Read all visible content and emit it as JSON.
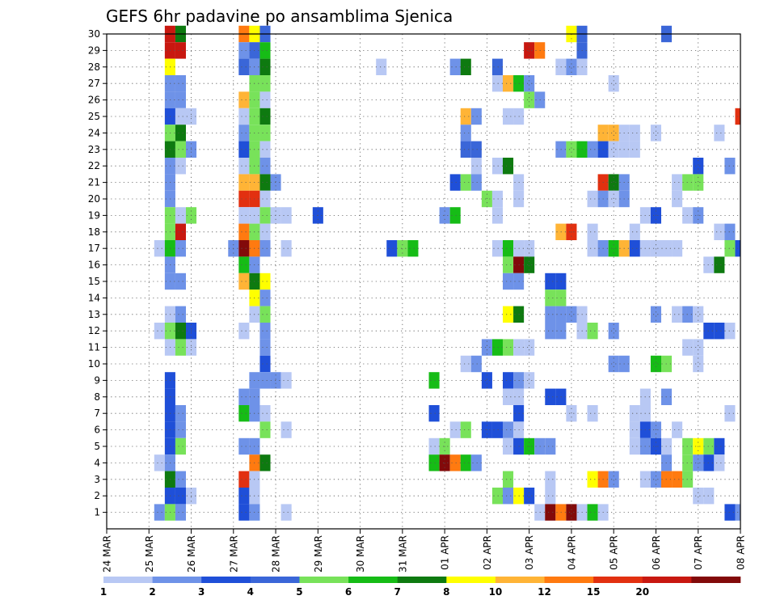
{
  "chart_data": {
    "type": "heatmap",
    "title": "GEFS 6hr padavine po ansamblima Sjenica",
    "xlabel": "",
    "ylabel": "",
    "x_ticks": [
      "24 MAR",
      "25 MAR",
      "26 MAR",
      "27 MAR",
      "28 MAR",
      "29 MAR",
      "30 MAR",
      "31 MAR",
      "01 APR",
      "02 APR",
      "03 APR",
      "04 APR",
      "05 APR",
      "06 APR",
      "07 APR",
      "08 APR"
    ],
    "y_ticks": [
      "1",
      "2",
      "3",
      "4",
      "5",
      "6",
      "7",
      "8",
      "9",
      "10",
      "11",
      "12",
      "13",
      "14",
      "15",
      "16",
      "17",
      "18",
      "19",
      "20",
      "21",
      "22",
      "23",
      "24",
      "25",
      "26",
      "27",
      "28",
      "29",
      "30"
    ],
    "x_unit": "6-hour step from 24 MAR 00 UTC",
    "xlim": [
      0,
      60
    ],
    "ylim": [
      0,
      30
    ],
    "grid": true,
    "colorbar": {
      "bounds": [
        1,
        2,
        3,
        4,
        5,
        6,
        7,
        8,
        10,
        12,
        15,
        20
      ],
      "colors": [
        "#b8c8f4",
        "#6e92e8",
        "#1f4fd8",
        "#3a66d8",
        "#78e25a",
        "#16bc16",
        "#0e7a10",
        "#ffff00",
        "#ffb436",
        "#ff7a10",
        "#e23010",
        "#c81810",
        "#820a0a"
      ],
      "labels": [
        "1",
        "2",
        "3",
        "4",
        "5",
        "6",
        "7",
        "8",
        "10",
        "12",
        "15",
        "20"
      ]
    },
    "cells_format": "[time_step, ensemble_member, color_class]",
    "cells": [
      [
        6,
        30,
        12
      ],
      [
        7,
        30,
        7
      ],
      [
        13,
        30,
        10
      ],
      [
        14,
        30,
        8
      ],
      [
        15,
        30,
        4
      ],
      [
        44,
        30,
        8
      ],
      [
        45,
        30,
        4
      ],
      [
        53,
        30,
        4
      ],
      [
        6,
        29,
        12
      ],
      [
        7,
        29,
        12
      ],
      [
        13,
        29,
        2
      ],
      [
        14,
        29,
        4
      ],
      [
        15,
        29,
        6
      ],
      [
        40,
        29,
        12
      ],
      [
        41,
        29,
        10
      ],
      [
        45,
        29,
        4
      ],
      [
        6,
        28,
        8
      ],
      [
        13,
        28,
        4
      ],
      [
        14,
        28,
        2
      ],
      [
        15,
        28,
        7
      ],
      [
        26,
        28,
        1
      ],
      [
        33,
        28,
        2
      ],
      [
        34,
        28,
        7
      ],
      [
        37,
        28,
        4
      ],
      [
        43,
        28,
        1
      ],
      [
        44,
        28,
        2
      ],
      [
        45,
        28,
        1
      ],
      [
        6,
        27,
        2
      ],
      [
        7,
        27,
        2
      ],
      [
        14,
        27,
        5
      ],
      [
        15,
        27,
        5
      ],
      [
        37,
        27,
        1
      ],
      [
        38,
        27,
        9
      ],
      [
        39,
        27,
        6
      ],
      [
        40,
        27,
        2
      ],
      [
        48,
        27,
        1
      ],
      [
        6,
        26,
        2
      ],
      [
        7,
        26,
        2
      ],
      [
        13,
        26,
        9
      ],
      [
        14,
        26,
        5
      ],
      [
        15,
        26,
        1
      ],
      [
        40,
        26,
        5
      ],
      [
        41,
        26,
        2
      ],
      [
        6,
        25,
        3
      ],
      [
        7,
        25,
        1
      ],
      [
        8,
        25,
        1
      ],
      [
        13,
        25,
        1
      ],
      [
        14,
        25,
        5
      ],
      [
        15,
        25,
        7
      ],
      [
        34,
        25,
        9
      ],
      [
        35,
        25,
        2
      ],
      [
        38,
        25,
        1
      ],
      [
        39,
        25,
        1
      ],
      [
        60,
        25,
        11
      ],
      [
        6,
        24,
        5
      ],
      [
        7,
        24,
        7
      ],
      [
        13,
        24,
        2
      ],
      [
        14,
        24,
        5
      ],
      [
        15,
        24,
        5
      ],
      [
        34,
        24,
        2
      ],
      [
        47,
        24,
        9
      ],
      [
        48,
        24,
        9
      ],
      [
        49,
        24,
        1
      ],
      [
        50,
        24,
        1
      ],
      [
        52,
        24,
        1
      ],
      [
        58,
        24,
        1
      ],
      [
        6,
        23,
        7
      ],
      [
        7,
        23,
        5
      ],
      [
        8,
        23,
        2
      ],
      [
        13,
        23,
        3
      ],
      [
        14,
        23,
        5
      ],
      [
        15,
        23,
        1
      ],
      [
        34,
        23,
        4
      ],
      [
        35,
        23,
        4
      ],
      [
        43,
        23,
        2
      ],
      [
        44,
        23,
        5
      ],
      [
        45,
        23,
        6
      ],
      [
        46,
        23,
        2
      ],
      [
        47,
        23,
        3
      ],
      [
        48,
        23,
        1
      ],
      [
        49,
        23,
        1
      ],
      [
        50,
        23,
        1
      ],
      [
        6,
        22,
        2
      ],
      [
        7,
        22,
        1
      ],
      [
        13,
        22,
        1
      ],
      [
        14,
        22,
        5
      ],
      [
        15,
        22,
        2
      ],
      [
        35,
        22,
        1
      ],
      [
        37,
        22,
        1
      ],
      [
        38,
        22,
        7
      ],
      [
        56,
        22,
        3
      ],
      [
        59,
        22,
        2
      ],
      [
        6,
        21,
        2
      ],
      [
        13,
        21,
        9
      ],
      [
        14,
        21,
        9
      ],
      [
        15,
        21,
        7
      ],
      [
        16,
        21,
        2
      ],
      [
        33,
        21,
        3
      ],
      [
        34,
        21,
        5
      ],
      [
        35,
        21,
        2
      ],
      [
        39,
        21,
        1
      ],
      [
        47,
        21,
        11
      ],
      [
        48,
        21,
        7
      ],
      [
        49,
        21,
        2
      ],
      [
        54,
        21,
        1
      ],
      [
        55,
        21,
        5
      ],
      [
        56,
        21,
        5
      ],
      [
        6,
        20,
        2
      ],
      [
        13,
        20,
        11
      ],
      [
        14,
        20,
        11
      ],
      [
        15,
        20,
        1
      ],
      [
        36,
        20,
        5
      ],
      [
        37,
        20,
        1
      ],
      [
        39,
        20,
        1
      ],
      [
        46,
        20,
        1
      ],
      [
        47,
        20,
        2
      ],
      [
        48,
        20,
        1
      ],
      [
        49,
        20,
        2
      ],
      [
        54,
        20,
        1
      ],
      [
        6,
        19,
        5
      ],
      [
        7,
        19,
        1
      ],
      [
        8,
        19,
        5
      ],
      [
        13,
        19,
        1
      ],
      [
        14,
        19,
        1
      ],
      [
        15,
        19,
        5
      ],
      [
        16,
        19,
        1
      ],
      [
        17,
        19,
        1
      ],
      [
        20,
        19,
        3
      ],
      [
        32,
        19,
        2
      ],
      [
        33,
        19,
        6
      ],
      [
        37,
        19,
        1
      ],
      [
        51,
        19,
        1
      ],
      [
        52,
        19,
        3
      ],
      [
        55,
        19,
        1
      ],
      [
        56,
        19,
        2
      ],
      [
        6,
        18,
        5
      ],
      [
        7,
        18,
        12
      ],
      [
        13,
        18,
        10
      ],
      [
        14,
        18,
        5
      ],
      [
        15,
        18,
        1
      ],
      [
        43,
        18,
        9
      ],
      [
        44,
        18,
        11
      ],
      [
        46,
        18,
        1
      ],
      [
        50,
        18,
        1
      ],
      [
        58,
        18,
        1
      ],
      [
        59,
        18,
        2
      ],
      [
        5,
        17,
        1
      ],
      [
        6,
        17,
        6
      ],
      [
        7,
        17,
        2
      ],
      [
        12,
        17,
        2
      ],
      [
        13,
        17,
        13
      ],
      [
        14,
        17,
        10
      ],
      [
        15,
        17,
        2
      ],
      [
        17,
        17,
        1
      ],
      [
        27,
        17,
        3
      ],
      [
        28,
        17,
        5
      ],
      [
        29,
        17,
        6
      ],
      [
        37,
        17,
        1
      ],
      [
        38,
        17,
        6
      ],
      [
        39,
        17,
        1
      ],
      [
        40,
        17,
        1
      ],
      [
        46,
        17,
        1
      ],
      [
        47,
        17,
        2
      ],
      [
        48,
        17,
        6
      ],
      [
        49,
        17,
        9
      ],
      [
        50,
        17,
        3
      ],
      [
        51,
        17,
        1
      ],
      [
        52,
        17,
        1
      ],
      [
        53,
        17,
        1
      ],
      [
        54,
        17,
        1
      ],
      [
        59,
        17,
        5
      ],
      [
        60,
        17,
        3
      ],
      [
        6,
        16,
        2
      ],
      [
        13,
        16,
        6
      ],
      [
        14,
        16,
        2
      ],
      [
        38,
        16,
        5
      ],
      [
        39,
        16,
        13
      ],
      [
        40,
        16,
        7
      ],
      [
        57,
        16,
        1
      ],
      [
        58,
        16,
        7
      ],
      [
        6,
        15,
        2
      ],
      [
        7,
        15,
        2
      ],
      [
        13,
        15,
        9
      ],
      [
        14,
        15,
        7
      ],
      [
        15,
        15,
        8
      ],
      [
        38,
        15,
        2
      ],
      [
        39,
        15,
        2
      ],
      [
        42,
        15,
        3
      ],
      [
        43,
        15,
        3
      ],
      [
        14,
        14,
        8
      ],
      [
        15,
        14,
        2
      ],
      [
        42,
        14,
        5
      ],
      [
        43,
        14,
        5
      ],
      [
        6,
        13,
        1
      ],
      [
        7,
        13,
        2
      ],
      [
        14,
        13,
        1
      ],
      [
        15,
        13,
        5
      ],
      [
        38,
        13,
        8
      ],
      [
        39,
        13,
        7
      ],
      [
        42,
        13,
        2
      ],
      [
        43,
        13,
        2
      ],
      [
        44,
        13,
        2
      ],
      [
        45,
        13,
        1
      ],
      [
        52,
        13,
        2
      ],
      [
        54,
        13,
        1
      ],
      [
        55,
        13,
        2
      ],
      [
        56,
        13,
        1
      ],
      [
        5,
        12,
        1
      ],
      [
        6,
        12,
        5
      ],
      [
        7,
        12,
        7
      ],
      [
        8,
        12,
        3
      ],
      [
        13,
        12,
        1
      ],
      [
        15,
        12,
        2
      ],
      [
        42,
        12,
        2
      ],
      [
        43,
        12,
        2
      ],
      [
        45,
        12,
        1
      ],
      [
        46,
        12,
        5
      ],
      [
        48,
        12,
        2
      ],
      [
        57,
        12,
        3
      ],
      [
        58,
        12,
        3
      ],
      [
        59,
        12,
        1
      ],
      [
        6,
        11,
        1
      ],
      [
        7,
        11,
        5
      ],
      [
        8,
        11,
        1
      ],
      [
        15,
        11,
        2
      ],
      [
        36,
        11,
        2
      ],
      [
        37,
        11,
        6
      ],
      [
        38,
        11,
        5
      ],
      [
        39,
        11,
        1
      ],
      [
        40,
        11,
        1
      ],
      [
        55,
        11,
        1
      ],
      [
        56,
        11,
        1
      ],
      [
        15,
        10,
        3
      ],
      [
        34,
        10,
        1
      ],
      [
        35,
        10,
        2
      ],
      [
        48,
        10,
        2
      ],
      [
        49,
        10,
        2
      ],
      [
        52,
        10,
        6
      ],
      [
        53,
        10,
        5
      ],
      [
        56,
        10,
        1
      ],
      [
        6,
        9,
        3
      ],
      [
        14,
        9,
        2
      ],
      [
        15,
        9,
        2
      ],
      [
        16,
        9,
        2
      ],
      [
        17,
        9,
        1
      ],
      [
        31,
        9,
        6
      ],
      [
        36,
        9,
        3
      ],
      [
        38,
        9,
        3
      ],
      [
        39,
        9,
        2
      ],
      [
        40,
        9,
        1
      ],
      [
        6,
        8,
        3
      ],
      [
        13,
        8,
        2
      ],
      [
        14,
        8,
        2
      ],
      [
        38,
        8,
        1
      ],
      [
        39,
        8,
        1
      ],
      [
        42,
        8,
        3
      ],
      [
        43,
        8,
        3
      ],
      [
        51,
        8,
        1
      ],
      [
        53,
        8,
        2
      ],
      [
        6,
        7,
        3
      ],
      [
        7,
        7,
        2
      ],
      [
        13,
        7,
        6
      ],
      [
        14,
        7,
        2
      ],
      [
        15,
        7,
        1
      ],
      [
        31,
        7,
        3
      ],
      [
        39,
        7,
        3
      ],
      [
        44,
        7,
        1
      ],
      [
        46,
        7,
        1
      ],
      [
        50,
        7,
        1
      ],
      [
        51,
        7,
        1
      ],
      [
        59,
        7,
        1
      ],
      [
        6,
        6,
        3
      ],
      [
        7,
        6,
        2
      ],
      [
        15,
        6,
        5
      ],
      [
        17,
        6,
        1
      ],
      [
        33,
        6,
        1
      ],
      [
        34,
        6,
        5
      ],
      [
        36,
        6,
        3
      ],
      [
        37,
        6,
        3
      ],
      [
        38,
        6,
        2
      ],
      [
        39,
        6,
        1
      ],
      [
        50,
        6,
        1
      ],
      [
        51,
        6,
        3
      ],
      [
        52,
        6,
        2
      ],
      [
        54,
        6,
        1
      ],
      [
        6,
        5,
        3
      ],
      [
        7,
        5,
        5
      ],
      [
        13,
        5,
        2
      ],
      [
        14,
        5,
        2
      ],
      [
        31,
        5,
        1
      ],
      [
        32,
        5,
        5
      ],
      [
        38,
        5,
        1
      ],
      [
        39,
        5,
        3
      ],
      [
        40,
        5,
        6
      ],
      [
        41,
        5,
        2
      ],
      [
        42,
        5,
        2
      ],
      [
        50,
        5,
        1
      ],
      [
        51,
        5,
        2
      ],
      [
        52,
        5,
        3
      ],
      [
        53,
        5,
        1
      ],
      [
        55,
        5,
        5
      ],
      [
        56,
        5,
        8
      ],
      [
        57,
        5,
        5
      ],
      [
        58,
        5,
        3
      ],
      [
        5,
        4,
        1
      ],
      [
        6,
        4,
        2
      ],
      [
        14,
        4,
        10
      ],
      [
        15,
        4,
        7
      ],
      [
        31,
        4,
        6
      ],
      [
        32,
        4,
        13
      ],
      [
        33,
        4,
        10
      ],
      [
        34,
        4,
        6
      ],
      [
        35,
        4,
        2
      ],
      [
        53,
        4,
        2
      ],
      [
        55,
        4,
        5
      ],
      [
        56,
        4,
        2
      ],
      [
        57,
        4,
        3
      ],
      [
        58,
        4,
        1
      ],
      [
        6,
        3,
        7
      ],
      [
        7,
        3,
        2
      ],
      [
        13,
        3,
        11
      ],
      [
        14,
        3,
        1
      ],
      [
        38,
        3,
        5
      ],
      [
        42,
        3,
        1
      ],
      [
        46,
        3,
        8
      ],
      [
        47,
        3,
        10
      ],
      [
        48,
        3,
        2
      ],
      [
        51,
        3,
        1
      ],
      [
        52,
        3,
        2
      ],
      [
        53,
        3,
        10
      ],
      [
        54,
        3,
        10
      ],
      [
        55,
        3,
        5
      ],
      [
        6,
        2,
        3
      ],
      [
        7,
        2,
        3
      ],
      [
        8,
        2,
        1
      ],
      [
        13,
        2,
        3
      ],
      [
        14,
        2,
        1
      ],
      [
        37,
        2,
        5
      ],
      [
        38,
        2,
        2
      ],
      [
        39,
        2,
        8
      ],
      [
        40,
        2,
        3
      ],
      [
        42,
        2,
        1
      ],
      [
        56,
        2,
        1
      ],
      [
        57,
        2,
        1
      ],
      [
        5,
        1,
        2
      ],
      [
        6,
        1,
        5
      ],
      [
        7,
        1,
        2
      ],
      [
        13,
        1,
        3
      ],
      [
        14,
        1,
        2
      ],
      [
        17,
        1,
        1
      ],
      [
        41,
        1,
        1
      ],
      [
        42,
        1,
        13
      ],
      [
        43,
        1,
        10
      ],
      [
        44,
        1,
        13
      ],
      [
        45,
        1,
        1
      ],
      [
        46,
        1,
        6
      ],
      [
        47,
        1,
        1
      ],
      [
        59,
        1,
        3
      ],
      [
        60,
        1,
        2
      ]
    ]
  }
}
